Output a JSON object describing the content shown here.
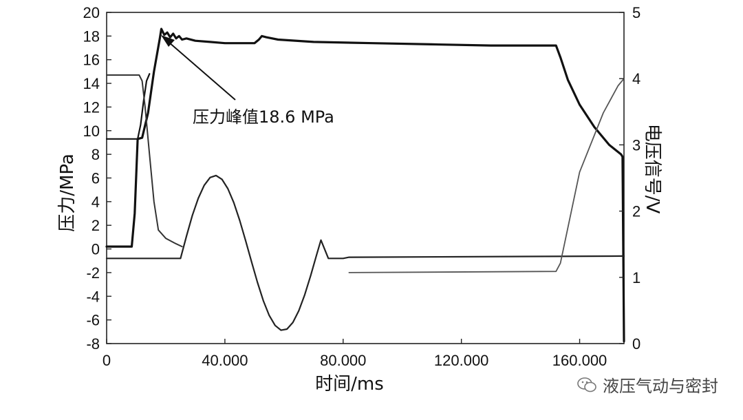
{
  "chart_data": {
    "type": "line",
    "xlabel": "时间/ms",
    "ylabel_left": "压力/MPa",
    "ylabel_right": "电压信号/V",
    "xlim": [
      0,
      175000
    ],
    "ylim_left": [
      -8,
      20
    ],
    "ylim_right": [
      0,
      5
    ],
    "x_ticks": [
      0,
      40000,
      80000,
      120000,
      160000
    ],
    "x_tick_labels": [
      "0",
      "40.000",
      "80.000",
      "120.000",
      "160.000"
    ],
    "y_left_ticks": [
      -8,
      -6,
      -4,
      -2,
      0,
      2,
      4,
      6,
      8,
      10,
      12,
      14,
      16,
      18,
      20
    ],
    "y_left_tick_labels": [
      "-8",
      "-6",
      "-4",
      "-2",
      "0",
      "2",
      "4",
      "6",
      "8",
      "10",
      "12",
      "14",
      "16",
      "18",
      "20"
    ],
    "y_right_ticks": [
      0,
      1,
      2,
      3,
      4,
      5
    ],
    "y_right_tick_labels": [
      "0",
      "1",
      "2",
      "3",
      "4",
      "5"
    ],
    "grid": false,
    "annotation": {
      "text": "压力峰值18.6 MPa",
      "x": 18500,
      "y": 18.6
    },
    "series": [
      {
        "axis": "left",
        "color": "#111111",
        "width": 3.2,
        "points": [
          [
            0,
            0.2
          ],
          [
            8500,
            0.2
          ],
          [
            9500,
            3
          ],
          [
            10500,
            9.3
          ],
          [
            12000,
            9.4
          ],
          [
            14000,
            11.5
          ],
          [
            16000,
            15
          ],
          [
            18000,
            17.8
          ],
          [
            18500,
            18.6
          ],
          [
            19500,
            18.1
          ],
          [
            20500,
            18.3
          ],
          [
            21500,
            17.9
          ],
          [
            22500,
            18.2
          ],
          [
            23500,
            17.8
          ],
          [
            24500,
            18.0
          ],
          [
            25500,
            17.7
          ],
          [
            27000,
            17.8
          ],
          [
            30000,
            17.6
          ],
          [
            35000,
            17.5
          ],
          [
            40000,
            17.4
          ],
          [
            45000,
            17.4
          ],
          [
            50000,
            17.4
          ],
          [
            51500,
            17.7
          ],
          [
            52500,
            18.0
          ],
          [
            54000,
            17.9
          ],
          [
            58000,
            17.7
          ],
          [
            70000,
            17.5
          ],
          [
            90000,
            17.4
          ],
          [
            110000,
            17.3
          ],
          [
            130000,
            17.2
          ],
          [
            150000,
            17.2
          ],
          [
            152000,
            17.2
          ],
          [
            153500,
            16.2
          ],
          [
            156000,
            14.3
          ],
          [
            160000,
            12.2
          ],
          [
            165000,
            10.3
          ],
          [
            170000,
            8.8
          ],
          [
            174000,
            8.0
          ],
          [
            174500,
            7.8
          ],
          [
            175000,
            -7.8
          ]
        ]
      },
      {
        "axis": "left",
        "color": "#111111",
        "width": 2.2,
        "points": [
          [
            0,
            9.3
          ],
          [
            10500,
            9.3
          ],
          [
            11500,
            10.5
          ],
          [
            12500,
            12.5
          ],
          [
            13500,
            14.2
          ],
          [
            14500,
            14.8
          ]
        ]
      },
      {
        "axis": "left",
        "color": "#333333",
        "width": 2.0,
        "points": [
          [
            0,
            14.7
          ],
          [
            11000,
            14.7
          ],
          [
            12000,
            14.2
          ],
          [
            13000,
            12
          ],
          [
            14500,
            8
          ],
          [
            16000,
            4
          ],
          [
            17500,
            1.6
          ],
          [
            20000,
            0.9
          ],
          [
            23000,
            0.5
          ],
          [
            25500,
            0.2
          ]
        ]
      },
      {
        "axis": "left",
        "color": "#222222",
        "width": 2.2,
        "points": [
          [
            0,
            -0.8
          ],
          [
            25000,
            -0.8
          ],
          [
            27000,
            1.07
          ],
          [
            29000,
            2.84
          ],
          [
            31000,
            4.28
          ],
          [
            33000,
            5.38
          ],
          [
            35000,
            6.04
          ],
          [
            37000,
            6.21
          ],
          [
            39000,
            5.89
          ],
          [
            41000,
            5.1
          ],
          [
            43000,
            3.92
          ],
          [
            45000,
            2.42
          ],
          [
            47000,
            0.71
          ],
          [
            49000,
            -1.08
          ],
          [
            51000,
            -2.82
          ],
          [
            53000,
            -4.37
          ],
          [
            55000,
            -5.62
          ],
          [
            57000,
            -6.47
          ],
          [
            59000,
            -6.87
          ],
          [
            61000,
            -6.78
          ],
          [
            63000,
            -6.22
          ],
          [
            65000,
            -5.23
          ],
          [
            67000,
            -3.88
          ],
          [
            69000,
            -2.27
          ],
          [
            71000,
            -0.52
          ],
          [
            72500,
            0.75
          ],
          [
            75000,
            -0.8
          ],
          [
            80000,
            -0.8
          ],
          [
            82000,
            -0.7
          ],
          [
            175000,
            -0.6
          ]
        ]
      },
      {
        "axis": "left",
        "color": "#555555",
        "width": 1.8,
        "points": [
          [
            82000,
            -2.0
          ],
          [
            152000,
            -1.9
          ],
          [
            153500,
            -1.2
          ],
          [
            160000,
            6.5
          ],
          [
            168000,
            11.5
          ],
          [
            173000,
            13.8
          ],
          [
            175000,
            14.4
          ]
        ]
      }
    ]
  },
  "watermark": {
    "text": "液压气动与密封",
    "icon": "wechat-icon"
  }
}
